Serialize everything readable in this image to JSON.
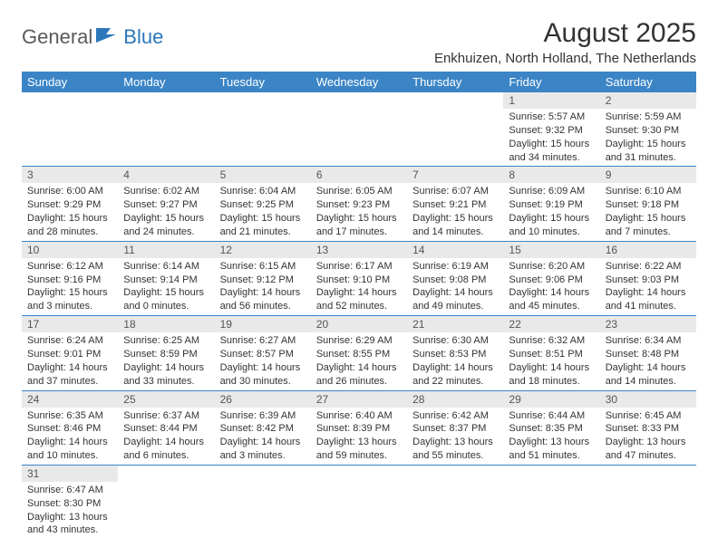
{
  "logo": {
    "general": "General",
    "blue": "Blue"
  },
  "title": "August 2025",
  "subtitle": "Enkhuizen, North Holland, The Netherlands",
  "colors": {
    "header_bg": "#3b85c6",
    "header_text": "#ffffff",
    "daynum_bg": "#e9e9e9",
    "text": "#333333",
    "logo_blue": "#2b77ba",
    "logo_gray": "#5a5a5a",
    "border": "#3b85c6"
  },
  "weekdays": [
    "Sunday",
    "Monday",
    "Tuesday",
    "Wednesday",
    "Thursday",
    "Friday",
    "Saturday"
  ],
  "weeks": [
    [
      null,
      null,
      null,
      null,
      null,
      {
        "n": "1",
        "sr": "5:57 AM",
        "ss": "9:32 PM",
        "dl": "15 hours and 34 minutes."
      },
      {
        "n": "2",
        "sr": "5:59 AM",
        "ss": "9:30 PM",
        "dl": "15 hours and 31 minutes."
      }
    ],
    [
      {
        "n": "3",
        "sr": "6:00 AM",
        "ss": "9:29 PM",
        "dl": "15 hours and 28 minutes."
      },
      {
        "n": "4",
        "sr": "6:02 AM",
        "ss": "9:27 PM",
        "dl": "15 hours and 24 minutes."
      },
      {
        "n": "5",
        "sr": "6:04 AM",
        "ss": "9:25 PM",
        "dl": "15 hours and 21 minutes."
      },
      {
        "n": "6",
        "sr": "6:05 AM",
        "ss": "9:23 PM",
        "dl": "15 hours and 17 minutes."
      },
      {
        "n": "7",
        "sr": "6:07 AM",
        "ss": "9:21 PM",
        "dl": "15 hours and 14 minutes."
      },
      {
        "n": "8",
        "sr": "6:09 AM",
        "ss": "9:19 PM",
        "dl": "15 hours and 10 minutes."
      },
      {
        "n": "9",
        "sr": "6:10 AM",
        "ss": "9:18 PM",
        "dl": "15 hours and 7 minutes."
      }
    ],
    [
      {
        "n": "10",
        "sr": "6:12 AM",
        "ss": "9:16 PM",
        "dl": "15 hours and 3 minutes."
      },
      {
        "n": "11",
        "sr": "6:14 AM",
        "ss": "9:14 PM",
        "dl": "15 hours and 0 minutes."
      },
      {
        "n": "12",
        "sr": "6:15 AM",
        "ss": "9:12 PM",
        "dl": "14 hours and 56 minutes."
      },
      {
        "n": "13",
        "sr": "6:17 AM",
        "ss": "9:10 PM",
        "dl": "14 hours and 52 minutes."
      },
      {
        "n": "14",
        "sr": "6:19 AM",
        "ss": "9:08 PM",
        "dl": "14 hours and 49 minutes."
      },
      {
        "n": "15",
        "sr": "6:20 AM",
        "ss": "9:06 PM",
        "dl": "14 hours and 45 minutes."
      },
      {
        "n": "16",
        "sr": "6:22 AM",
        "ss": "9:03 PM",
        "dl": "14 hours and 41 minutes."
      }
    ],
    [
      {
        "n": "17",
        "sr": "6:24 AM",
        "ss": "9:01 PM",
        "dl": "14 hours and 37 minutes."
      },
      {
        "n": "18",
        "sr": "6:25 AM",
        "ss": "8:59 PM",
        "dl": "14 hours and 33 minutes."
      },
      {
        "n": "19",
        "sr": "6:27 AM",
        "ss": "8:57 PM",
        "dl": "14 hours and 30 minutes."
      },
      {
        "n": "20",
        "sr": "6:29 AM",
        "ss": "8:55 PM",
        "dl": "14 hours and 26 minutes."
      },
      {
        "n": "21",
        "sr": "6:30 AM",
        "ss": "8:53 PM",
        "dl": "14 hours and 22 minutes."
      },
      {
        "n": "22",
        "sr": "6:32 AM",
        "ss": "8:51 PM",
        "dl": "14 hours and 18 minutes."
      },
      {
        "n": "23",
        "sr": "6:34 AM",
        "ss": "8:48 PM",
        "dl": "14 hours and 14 minutes."
      }
    ],
    [
      {
        "n": "24",
        "sr": "6:35 AM",
        "ss": "8:46 PM",
        "dl": "14 hours and 10 minutes."
      },
      {
        "n": "25",
        "sr": "6:37 AM",
        "ss": "8:44 PM",
        "dl": "14 hours and 6 minutes."
      },
      {
        "n": "26",
        "sr": "6:39 AM",
        "ss": "8:42 PM",
        "dl": "14 hours and 3 minutes."
      },
      {
        "n": "27",
        "sr": "6:40 AM",
        "ss": "8:39 PM",
        "dl": "13 hours and 59 minutes."
      },
      {
        "n": "28",
        "sr": "6:42 AM",
        "ss": "8:37 PM",
        "dl": "13 hours and 55 minutes."
      },
      {
        "n": "29",
        "sr": "6:44 AM",
        "ss": "8:35 PM",
        "dl": "13 hours and 51 minutes."
      },
      {
        "n": "30",
        "sr": "6:45 AM",
        "ss": "8:33 PM",
        "dl": "13 hours and 47 minutes."
      }
    ],
    [
      {
        "n": "31",
        "sr": "6:47 AM",
        "ss": "8:30 PM",
        "dl": "13 hours and 43 minutes."
      },
      null,
      null,
      null,
      null,
      null,
      null
    ]
  ],
  "labels": {
    "sunrise": "Sunrise:",
    "sunset": "Sunset:",
    "daylight": "Daylight:"
  }
}
